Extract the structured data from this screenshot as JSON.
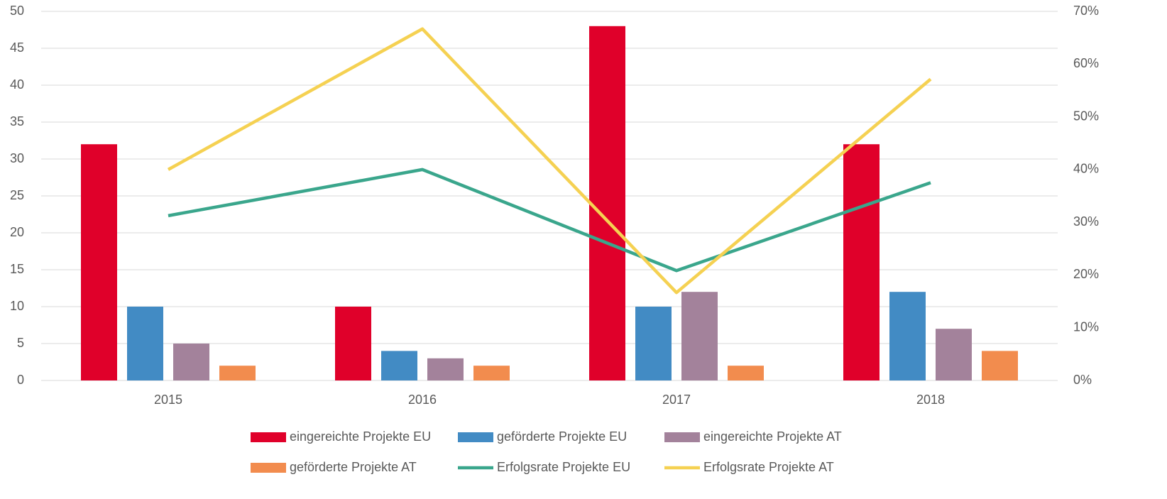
{
  "chart_data": {
    "type": "bar",
    "categories": [
      "2015",
      "2016",
      "2017",
      "2018"
    ],
    "series": [
      {
        "name": "eingereichte Projekte EU",
        "color": "#e0002a",
        "values": [
          32,
          10,
          48,
          32
        ]
      },
      {
        "name": "geförderte Projekte EU",
        "color": "#428bc4",
        "values": [
          10,
          4,
          10,
          12
        ]
      },
      {
        "name": "eingereichte Projekte AT",
        "color": "#a3829b",
        "values": [
          5,
          3,
          12,
          7
        ]
      },
      {
        "name": "geförderte Projekte AT",
        "color": "#f28c4e",
        "values": [
          2,
          2,
          2,
          4
        ]
      },
      {
        "name": "Erfolgsrate Projekte EU",
        "type": "line",
        "axis": "y2",
        "color": "#3aa68c",
        "values": [
          31.25,
          40,
          20.83,
          37.5
        ]
      },
      {
        "name": "Erfolgsrate Projekte AT",
        "type": "line",
        "axis": "y2",
        "color": "#f5d152",
        "values": [
          40,
          66.67,
          16.67,
          57.14
        ]
      }
    ],
    "ylim": [
      0,
      50
    ],
    "yticks": [
      0,
      5,
      10,
      15,
      20,
      25,
      30,
      35,
      40,
      45,
      50
    ],
    "y2lim": [
      0,
      70
    ],
    "y2ticks": [
      {
        "value": 0,
        "label": "0%"
      },
      {
        "value": 10,
        "label": "10%"
      },
      {
        "value": 20,
        "label": "20%"
      },
      {
        "value": 30,
        "label": "30%"
      },
      {
        "value": 40,
        "label": "40%"
      },
      {
        "value": 50,
        "label": "50%"
      },
      {
        "value": 60,
        "label": "60%"
      },
      {
        "value": 70,
        "label": "70%"
      }
    ],
    "grid": true,
    "legend": "bottom"
  }
}
